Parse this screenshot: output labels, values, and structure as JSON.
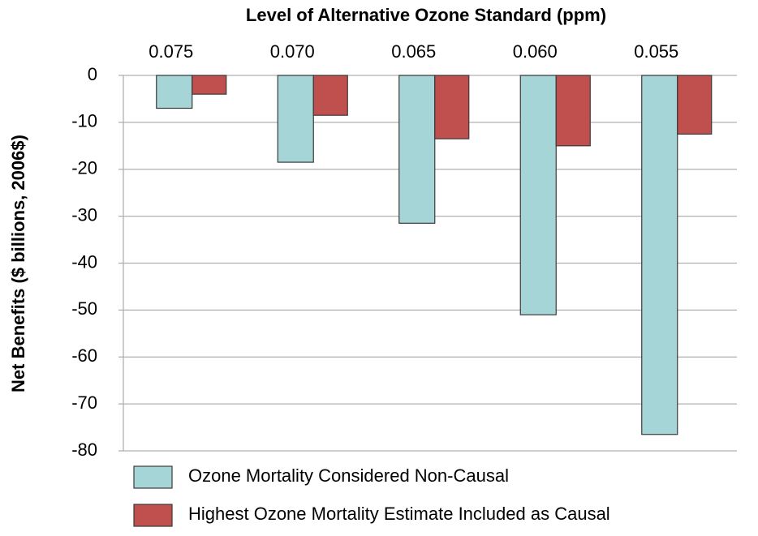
{
  "chart_data": {
    "type": "bar",
    "title": "Level of Alternative Ozone Standard (ppm)",
    "ylabel": "Net Benefits ($ billions, 2006$)",
    "categories": [
      "0.075",
      "0.070",
      "0.065",
      "0.060",
      "0.055"
    ],
    "series": [
      {
        "name": "Ozone Mortality Considered Non-Causal",
        "color": "#a5d5d6",
        "values": [
          -7,
          -18.5,
          -31.5,
          -51,
          -76.5
        ]
      },
      {
        "name": "Highest Ozone Mortality Estimate Included as Causal",
        "color": "#c0504d",
        "values": [
          -4,
          -8.5,
          -13.5,
          -15,
          -12.5
        ]
      }
    ],
    "ylim": [
      -80,
      0
    ],
    "yticks": [
      0,
      -10,
      -20,
      -30,
      -40,
      -50,
      -60,
      -70,
      -80
    ],
    "grid": true
  }
}
